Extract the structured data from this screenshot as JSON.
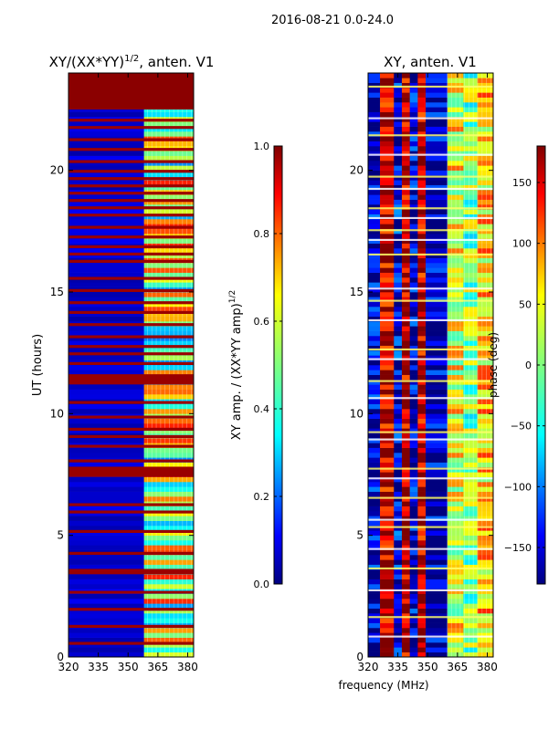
{
  "figure": {
    "suptitle": "2016-08-21 0.0-24.0",
    "shared_xlabel": "frequency (MHz)"
  },
  "colors": {
    "jet": [
      "#00007f",
      "#0000ff",
      "#007fff",
      "#00ffff",
      "#7fff7f",
      "#ffff00",
      "#ff7f00",
      "#ff0000",
      "#7f0000"
    ]
  },
  "chart_data": [
    {
      "type": "heatmap",
      "title_main": "XY/(XX*YY)",
      "title_sup": "1/2",
      "title_tail": ", anten. V1",
      "xlabel": "",
      "ylabel": "UT (hours)",
      "xlim": [
        320,
        383
      ],
      "ylim": [
        0,
        24
      ],
      "xticks": [
        320,
        335,
        350,
        365,
        380
      ],
      "yticks": [
        0,
        5,
        10,
        15,
        20
      ],
      "colorbar": {
        "label_main": "XY amp. / (XX*YY amp)",
        "label_sup": "1/2",
        "ticks": [
          "0.0",
          "0.2",
          "0.4",
          "0.6",
          "0.8",
          "1.0"
        ],
        "range": [
          0.0,
          1.0
        ]
      },
      "bands": [
        {
          "f0": 320,
          "f1": 358,
          "value": 0.08
        },
        {
          "f0": 358,
          "f1": 383,
          "value": 0.55
        }
      ],
      "saturated_rows_hours": [
        0.5,
        1.2,
        1.9,
        2.6,
        3.4,
        3.5,
        4.2,
        5.1,
        5.9,
        6.2,
        7.4,
        7.5,
        7.6,
        7.7,
        8.0,
        8.6,
        9.0,
        9.3,
        9.8,
        10.4,
        11.2,
        11.3,
        11.4,
        11.5,
        12.0,
        12.4,
        12.7,
        13.1,
        13.6,
        14.1,
        14.5,
        15.0,
        15.5,
        16.2,
        16.5,
        16.8,
        17.2,
        17.6,
        18.1,
        18.4,
        18.7,
        19.0,
        19.3,
        19.6,
        19.9,
        20.3,
        20.8,
        21.2,
        21.7,
        22.0
      ],
      "saturated_block_hours": [
        22.5,
        24.0
      ]
    },
    {
      "type": "heatmap",
      "title": "XY, anten. V1",
      "xlabel": "frequency (MHz)",
      "ylabel": "",
      "xlim": [
        320,
        383
      ],
      "ylim": [
        0,
        24
      ],
      "xticks": [
        320,
        335,
        350,
        365,
        380
      ],
      "yticks": [
        0,
        5,
        10,
        15,
        20
      ],
      "colorbar": {
        "label": "phase (deg)",
        "ticks": [
          "−150",
          "−100",
          "−50",
          "0",
          "50",
          "100",
          "150"
        ],
        "range": [
          -180,
          180
        ]
      },
      "bands": [
        {
          "f0": 320,
          "f1": 326,
          "value": -150
        },
        {
          "f0": 326,
          "f1": 333,
          "value": 160
        },
        {
          "f0": 333,
          "f1": 337,
          "value": -140
        },
        {
          "f0": 337,
          "f1": 341,
          "value": 165
        },
        {
          "f0": 341,
          "f1": 345,
          "value": -150
        },
        {
          "f0": 345,
          "f1": 349,
          "value": 160
        },
        {
          "f0": 349,
          "f1": 360,
          "value": -160
        },
        {
          "f0": 360,
          "f1": 368,
          "value": 40
        },
        {
          "f0": 368,
          "f1": 375,
          "value": 0
        },
        {
          "f0": 375,
          "f1": 383,
          "value": 60
        }
      ],
      "highlight_rows_hours": [
        0.8,
        1.6,
        2.7,
        3.6,
        4.4,
        5.3,
        5.6,
        6.5,
        7.3,
        7.7,
        8.9,
        9.2,
        10.6,
        11.3,
        12.2,
        12.6,
        13.8,
        14.6,
        15.1,
        16.5,
        17.1,
        17.5,
        18.0,
        18.4,
        19.2,
        19.7,
        20.6,
        21.4,
        22.1,
        23.4
      ]
    }
  ]
}
